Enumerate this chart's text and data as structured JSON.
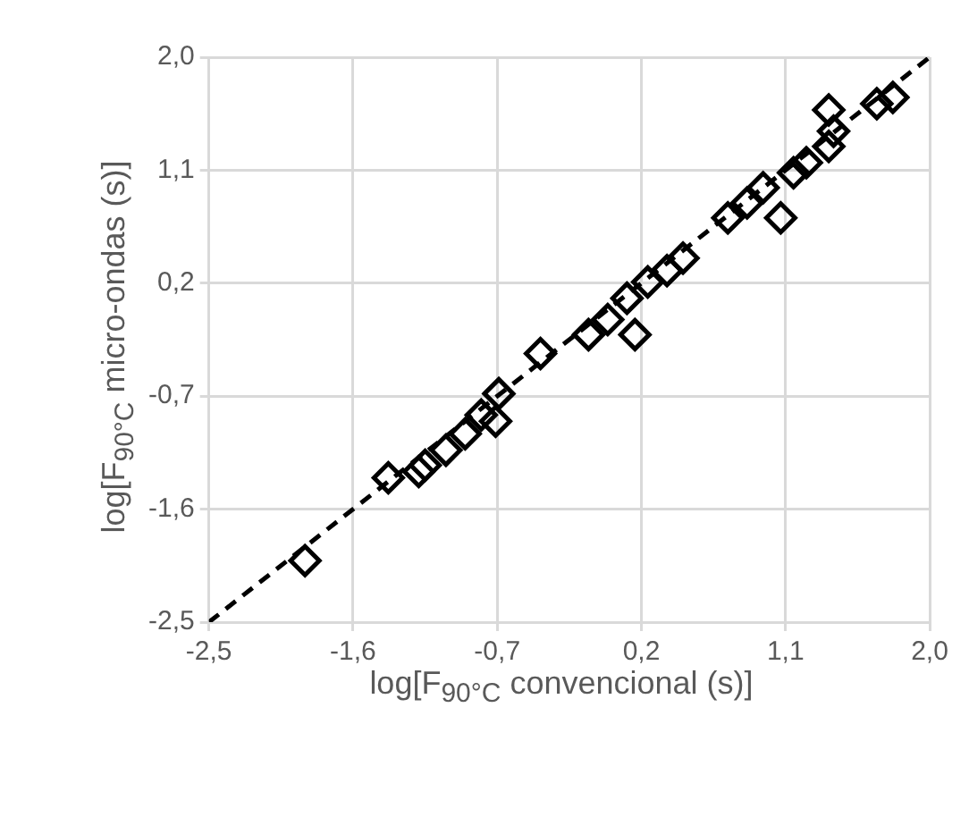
{
  "chart_data": {
    "type": "scatter",
    "xlabel": "log[F$_{90°C}$ convencional (s)]",
    "ylabel": "log[F$_{90°C}$ micro-ondas (s)]",
    "xlim": [
      -2.5,
      2.0
    ],
    "ylim": [
      -2.5,
      2.0
    ],
    "xticks": [
      {
        "value": -2.5,
        "label": "-2,5"
      },
      {
        "value": -1.6,
        "label": "-1,6"
      },
      {
        "value": -0.7,
        "label": "-0,7"
      },
      {
        "value": 0.2,
        "label": "0,2"
      },
      {
        "value": 1.1,
        "label": "1,1"
      },
      {
        "value": 2.0,
        "label": "2,0"
      }
    ],
    "yticks": [
      {
        "value": -2.5,
        "label": "-2,5"
      },
      {
        "value": -1.6,
        "label": "-1,6"
      },
      {
        "value": -0.7,
        "label": "-0,7"
      },
      {
        "value": 0.2,
        "label": "0,2"
      },
      {
        "value": 1.1,
        "label": "1,1"
      },
      {
        "value": 2.0,
        "label": "2,0"
      }
    ],
    "grid": true,
    "legend": false,
    "series": [
      {
        "type": "line",
        "color": "#000000",
        "marker": "none",
        "line_style": "dashed",
        "x": [
          -2.5,
          2.0
        ],
        "values": [
          -2.5,
          2.0
        ]
      },
      {
        "type": "scatter",
        "color": "#000000",
        "marker": "diamond",
        "x": [
          -1.9,
          -1.38,
          -1.19,
          -1.15,
          -1.02,
          -0.9,
          -0.8,
          -0.71,
          -0.69,
          -0.71,
          -0.43,
          -0.13,
          -0.01,
          0.16,
          0.11,
          0.24,
          0.36,
          0.46,
          0.74,
          0.86,
          0.96,
          1.07,
          1.15,
          1.23,
          1.37,
          1.37,
          1.4,
          1.67,
          1.77
        ],
        "values": [
          -2.01,
          -1.35,
          -1.3,
          -1.25,
          -1.13,
          -1.0,
          -0.85,
          null,
          -0.68,
          -0.9,
          -0.36,
          -0.21,
          -0.09,
          -0.21,
          0.08,
          0.21,
          0.3,
          0.4,
          0.72,
          0.84,
          0.96,
          0.72,
          1.08,
          1.16,
          1.29,
          1.58,
          1.41,
          1.63,
          1.68
        ]
      }
    ]
  }
}
